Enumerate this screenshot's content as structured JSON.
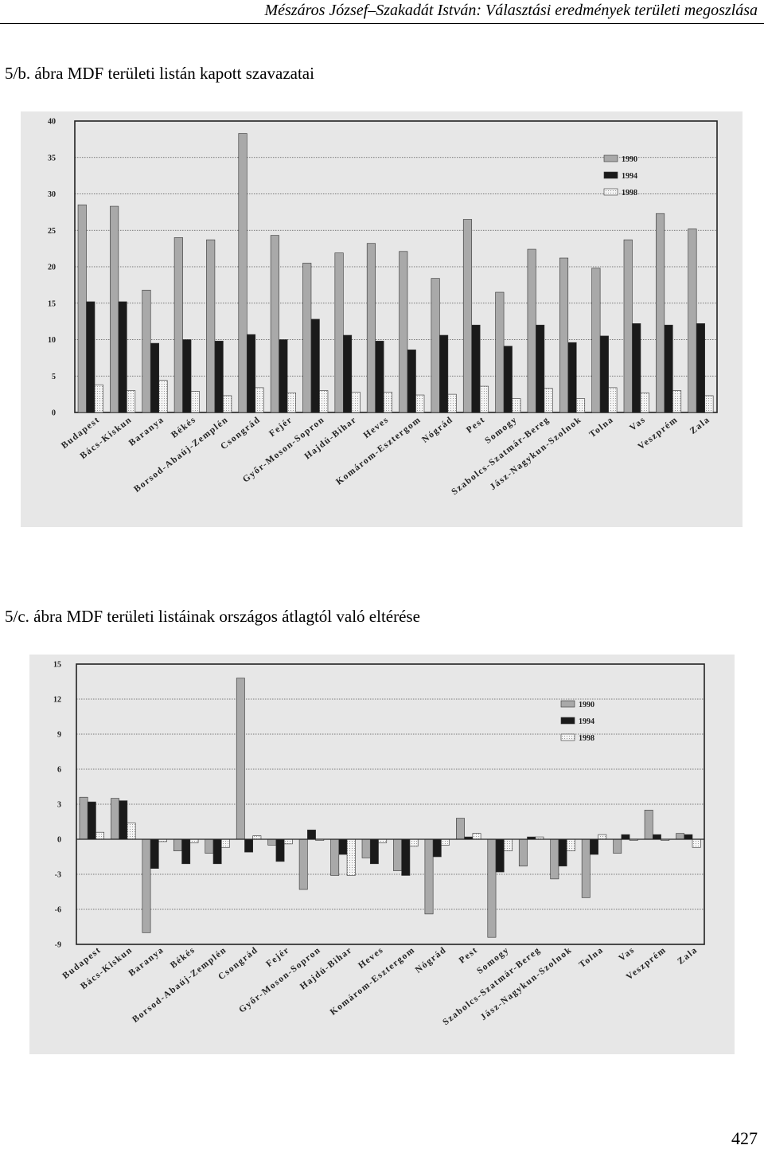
{
  "header": {
    "running_title": "Mészáros József–Szakadát István: Választási eredmények területi megoszlása"
  },
  "figures": [
    {
      "caption": "5/b. ábra MDF területi listán kapott szavazatai"
    },
    {
      "caption": "5/c. ábra MDF területi listáinak országos átlagtól való eltérése"
    }
  ],
  "footer": {
    "page_number": "427"
  },
  "chart_data": [
    {
      "type": "bar",
      "title": "",
      "xlabel": "",
      "ylabel": "",
      "ylim": [
        0,
        40
      ],
      "yticks": [
        0,
        5,
        10,
        15,
        20,
        25,
        30,
        35,
        40
      ],
      "grid": true,
      "legend_position": "top-right",
      "categories": [
        "Budapest",
        "Bács-Kiskun",
        "Baranya",
        "Békés",
        "Borsod-Abaúj-Zemplén",
        "Csongrád",
        "Fejér",
        "Győr-Moson-Sopron",
        "Hajdú-Bihar",
        "Heves",
        "Komárom-Esztergom",
        "Nógrád",
        "Pest",
        "Somogy",
        "Szabolcs-Szatmár-Bereg",
        "Jász-Nagykun-Szolnok",
        "Tolna",
        "Vas",
        "Veszprém",
        "Zala"
      ],
      "series": [
        {
          "name": "1990",
          "color": "#a9a9a9",
          "values": [
            28.5,
            28.3,
            16.8,
            24.0,
            23.7,
            38.3,
            24.3,
            20.5,
            21.9,
            23.2,
            22.1,
            18.4,
            26.5,
            16.5,
            22.4,
            21.2,
            19.8,
            23.7,
            27.3,
            25.2
          ]
        },
        {
          "name": "1994",
          "color": "#1a1a1a",
          "values": [
            15.2,
            15.2,
            9.5,
            10.0,
            9.8,
            10.7,
            10.0,
            12.8,
            10.6,
            9.8,
            8.6,
            10.6,
            12.0,
            9.1,
            12.0,
            9.6,
            10.5,
            12.2,
            12.0,
            12.2
          ]
        },
        {
          "name": "1998",
          "color": "#efefef",
          "values": [
            3.8,
            3.0,
            4.4,
            2.9,
            2.3,
            3.4,
            2.7,
            3.0,
            2.8,
            2.8,
            2.4,
            2.5,
            3.6,
            1.9,
            3.3,
            1.9,
            3.4,
            2.7,
            3.0,
            2.3
          ]
        }
      ]
    },
    {
      "type": "bar",
      "title": "",
      "xlabel": "",
      "ylabel": "",
      "ylim": [
        -9,
        15
      ],
      "yticks": [
        -9,
        -6,
        -3,
        0,
        3,
        6,
        9,
        12,
        15
      ],
      "grid": true,
      "legend_position": "top-right",
      "categories": [
        "Budapest",
        "Bács-Kiskun",
        "Baranya",
        "Békés",
        "Borsod-Abaúj-Zemplén",
        "Csongrád",
        "Fejér",
        "Győr-Moson-Sopron",
        "Hajdú-Bihar",
        "Heves",
        "Komárom-Esztergom",
        "Nógrád",
        "Pest",
        "Somogy",
        "Szabolcs-Szatmár-Bereg",
        "Jász-Nagykun-Szolnok",
        "Tolna",
        "Vas",
        "Veszprém",
        "Zala"
      ],
      "series": [
        {
          "name": "1990",
          "color": "#a9a9a9",
          "values": [
            3.6,
            3.5,
            -8.0,
            -1.0,
            -1.2,
            13.8,
            -0.5,
            -4.3,
            -3.1,
            -1.6,
            -2.7,
            -6.4,
            1.8,
            -8.4,
            -2.3,
            -3.4,
            -5.0,
            -1.2,
            2.5,
            0.5
          ]
        },
        {
          "name": "1994",
          "color": "#1a1a1a",
          "values": [
            3.2,
            3.3,
            -2.5,
            -2.1,
            -2.1,
            -1.1,
            -1.9,
            0.8,
            -1.3,
            -2.1,
            -3.1,
            -1.5,
            0.2,
            -2.8,
            0.2,
            -2.3,
            -1.3,
            0.4,
            0.4,
            0.4
          ]
        },
        {
          "name": "1998",
          "color": "#efefef",
          "values": [
            0.6,
            1.4,
            -0.2,
            -0.3,
            -0.7,
            0.3,
            -0.4,
            -0.1,
            -3.1,
            -0.3,
            -0.6,
            -0.5,
            0.5,
            -1.0,
            0.2,
            -1.0,
            0.4,
            -0.1,
            -0.1,
            -0.7
          ]
        }
      ]
    }
  ]
}
